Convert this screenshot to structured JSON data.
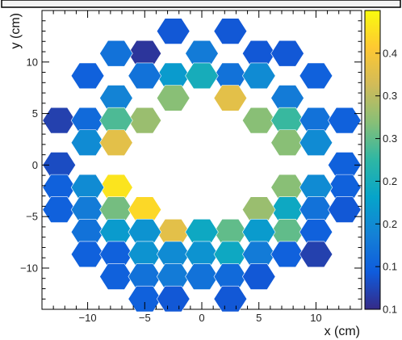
{
  "chart_data": {
    "type": "heatmap",
    "title": "",
    "xlabel": "x (cm)",
    "ylabel": "y (cm)",
    "xlim": [
      -14,
      14
    ],
    "ylim": [
      -14,
      15
    ],
    "x_ticks": [
      -10,
      -5,
      0,
      5,
      10
    ],
    "x_tick_labels": [
      "−10",
      "−5",
      "0",
      "5",
      "10"
    ],
    "y_ticks": [
      -10,
      -5,
      0,
      5,
      10
    ],
    "y_tick_labels": [
      "−10",
      "−5",
      "0",
      "5",
      "10"
    ],
    "colorbar": {
      "range": [
        0.1,
        0.45
      ],
      "tick_values": [
        0.1,
        0.15,
        0.2,
        0.25,
        0.3,
        0.35,
        0.4
      ],
      "tick_labels": [
        "0.1",
        "0.1",
        "0.2",
        "0.2",
        "0.3",
        "0.3",
        "0.4"
      ],
      "colors": [
        "#352a87",
        "#0f5cdd",
        "#1481d6",
        "#06a4ca",
        "#2eb7a4",
        "#87bf77",
        "#d1bb59",
        "#fec832",
        "#f9fb0e"
      ]
    },
    "cells": [
      {
        "x": -2.5,
        "y": 12.99,
        "value": 0.14
      },
      {
        "x": 2.5,
        "y": 12.99,
        "value": 0.14
      },
      {
        "x": -5.0,
        "y": 10.83,
        "value": 0.11
      },
      {
        "x": 0.0,
        "y": 10.83,
        "value": 0.18
      },
      {
        "x": 5.0,
        "y": 10.83,
        "value": 0.14
      },
      {
        "x": -10.0,
        "y": 8.66,
        "value": 0.15
      },
      {
        "x": -7.5,
        "y": 10.83,
        "value": 0.17
      },
      {
        "x": -2.5,
        "y": 8.66,
        "value": 0.22
      },
      {
        "x": 2.5,
        "y": 8.66,
        "value": 0.17
      },
      {
        "x": 7.5,
        "y": 10.83,
        "value": 0.14
      },
      {
        "x": 10.0,
        "y": 8.66,
        "value": 0.15
      },
      {
        "x": -7.5,
        "y": 6.5,
        "value": 0.19
      },
      {
        "x": -5.0,
        "y": 8.66,
        "value": 0.17
      },
      {
        "x": -2.5,
        "y": 6.5,
        "value": 0.32
      },
      {
        "x": 0.0,
        "y": 8.66,
        "value": 0.25
      },
      {
        "x": 2.5,
        "y": 6.5,
        "value": 0.38
      },
      {
        "x": 5.0,
        "y": 8.66,
        "value": 0.2
      },
      {
        "x": 7.5,
        "y": 6.5,
        "value": 0.18
      },
      {
        "x": -5.0,
        "y": 4.33,
        "value": 0.33
      },
      {
        "x": 5.0,
        "y": 4.33,
        "value": 0.32
      },
      {
        "x": -12.5,
        "y": 4.33,
        "value": 0.12
      },
      {
        "x": -10.0,
        "y": 4.33,
        "value": 0.16
      },
      {
        "x": -7.5,
        "y": 4.33,
        "value": 0.29
      },
      {
        "x": 7.5,
        "y": 4.33,
        "value": 0.28
      },
      {
        "x": 10.0,
        "y": 4.33,
        "value": 0.17
      },
      {
        "x": 12.5,
        "y": 4.33,
        "value": 0.15
      },
      {
        "x": -10.0,
        "y": 2.17,
        "value": 0.2
      },
      {
        "x": -7.5,
        "y": 2.17,
        "value": 0.38
      },
      {
        "x": 7.5,
        "y": 2.17,
        "value": 0.32
      },
      {
        "x": 10.0,
        "y": 2.17,
        "value": 0.2
      },
      {
        "x": -12.5,
        "y": 0.0,
        "value": 0.13
      },
      {
        "x": 12.5,
        "y": 0.0,
        "value": 0.15
      },
      {
        "x": -12.5,
        "y": -2.17,
        "value": 0.15
      },
      {
        "x": -7.5,
        "y": -2.17,
        "value": 0.43
      },
      {
        "x": 7.5,
        "y": -2.17,
        "value": 0.32
      },
      {
        "x": 12.5,
        "y": -2.17,
        "value": 0.15
      },
      {
        "x": -12.5,
        "y": -4.33,
        "value": 0.15
      },
      {
        "x": -10.0,
        "y": -2.17,
        "value": 0.2
      },
      {
        "x": -10.0,
        "y": -4.33,
        "value": 0.18
      },
      {
        "x": -7.5,
        "y": -4.33,
        "value": 0.31
      },
      {
        "x": 7.5,
        "y": -4.33,
        "value": 0.24
      },
      {
        "x": 10.0,
        "y": -2.17,
        "value": 0.2
      },
      {
        "x": 10.0,
        "y": -4.33,
        "value": 0.17
      },
      {
        "x": 12.5,
        "y": -4.33,
        "value": 0.14
      },
      {
        "x": -10.0,
        "y": -6.5,
        "value": 0.17
      },
      {
        "x": -7.5,
        "y": -6.5,
        "value": 0.22
      },
      {
        "x": -5.0,
        "y": -4.33,
        "value": 0.42
      },
      {
        "x": -2.5,
        "y": -6.5,
        "value": 0.38
      },
      {
        "x": 2.5,
        "y": -6.5,
        "value": 0.3
      },
      {
        "x": 5.0,
        "y": -4.33,
        "value": 0.33
      },
      {
        "x": 7.5,
        "y": -6.5,
        "value": 0.3
      },
      {
        "x": 10.0,
        "y": -6.5,
        "value": 0.15
      },
      {
        "x": -10.0,
        "y": -8.66,
        "value": 0.15
      },
      {
        "x": -7.5,
        "y": -8.66,
        "value": 0.15
      },
      {
        "x": -5.0,
        "y": -6.5,
        "value": 0.21
      },
      {
        "x": -5.0,
        "y": -8.66,
        "value": 0.21
      },
      {
        "x": -2.5,
        "y": -8.66,
        "value": 0.2
      },
      {
        "x": 0.0,
        "y": -6.5,
        "value": 0.24
      },
      {
        "x": 0.0,
        "y": -8.66,
        "value": 0.21
      },
      {
        "x": 2.5,
        "y": -8.66,
        "value": 0.24
      },
      {
        "x": 5.0,
        "y": -6.5,
        "value": 0.22
      },
      {
        "x": 5.0,
        "y": -8.66,
        "value": 0.18
      },
      {
        "x": 7.5,
        "y": -8.66,
        "value": 0.15
      },
      {
        "x": 10.0,
        "y": -8.66,
        "value": 0.12
      },
      {
        "x": -7.5,
        "y": -10.83,
        "value": 0.15
      },
      {
        "x": -5.0,
        "y": -10.83,
        "value": 0.17
      },
      {
        "x": -2.5,
        "y": -10.83,
        "value": 0.18
      },
      {
        "x": 0.0,
        "y": -10.83,
        "value": 0.17
      },
      {
        "x": 2.5,
        "y": -10.83,
        "value": 0.16
      },
      {
        "x": 5.0,
        "y": -10.83,
        "value": 0.14
      },
      {
        "x": -5.0,
        "y": -12.99,
        "value": 0.15
      },
      {
        "x": -2.5,
        "y": -12.99,
        "value": 0.14
      },
      {
        "x": 2.5,
        "y": -12.99,
        "value": 0.14
      }
    ]
  }
}
